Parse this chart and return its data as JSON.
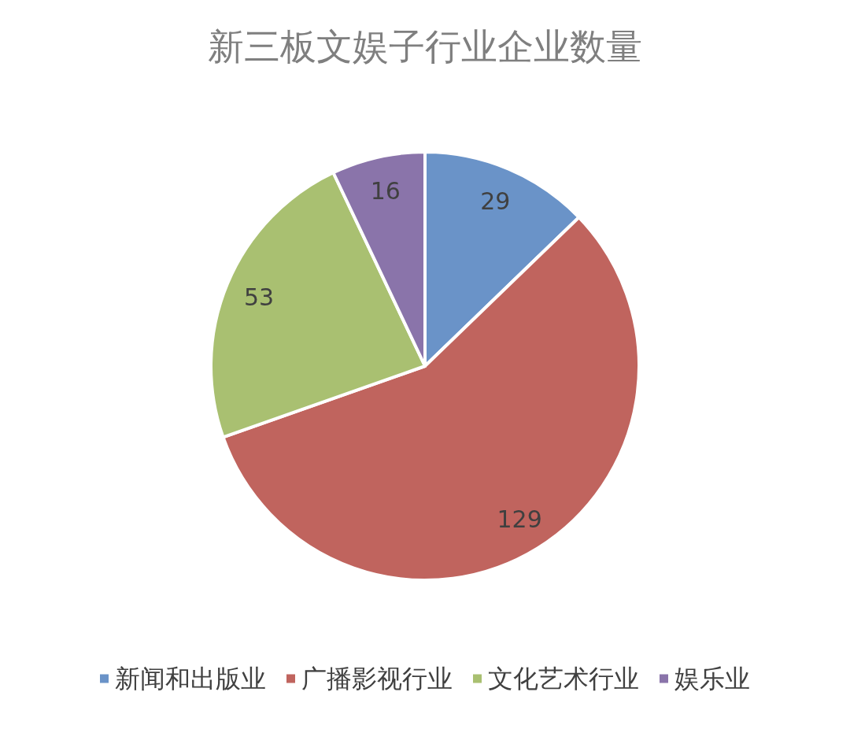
{
  "chart_data": {
    "type": "pie",
    "title": "新三板文娱子行业企业数量",
    "categories": [
      "新闻和出版业",
      "广播影视行业",
      "文化艺术行业",
      "娱乐业"
    ],
    "values": [
      29,
      129,
      53,
      16
    ],
    "colors": [
      "#6a93c8",
      "#c0645e",
      "#a9c071",
      "#8a74aa"
    ],
    "data_labels": true,
    "legend": "bottom"
  }
}
